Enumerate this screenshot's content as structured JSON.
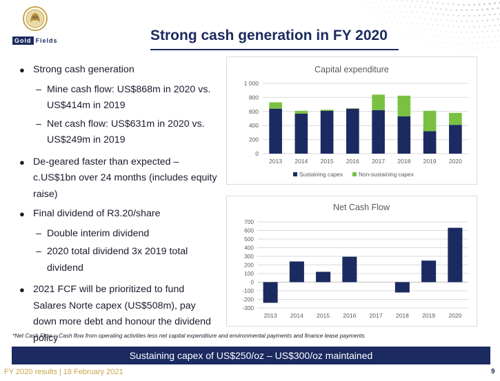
{
  "logo": {
    "word1": "Gold",
    "word2": "Fields"
  },
  "title": "Strong cash generation in FY 2020",
  "bullets": {
    "b1": "Strong cash generation",
    "b1_s1": "Mine cash flow: US$868m in 2020 vs. US$414m in 2019",
    "b1_s2": "Net cash flow: US$631m in 2020 vs. US$249m in 2019",
    "b2": "De-geared faster than expected – c.US$1bn over 24 months (includes equity raise)",
    "b3": "Final dividend of R3.20/share",
    "b3_s1": "Double interim dividend",
    "b3_s2": "2020 total dividend 3x 2019 total dividend",
    "b4": "2021 FCF will be prioritized to fund Salares Norte capex (US$508m), pay down more debt and honour the dividend policy"
  },
  "footnote": "*Net Cash Flow = Cash flow from operating activities less net capital expenditure and environmental payments and finance lease payments",
  "banner": "Sustaining capex of US$250/oz – US$300/oz maintained",
  "footer": "FY 2020 results | 18 February 2021",
  "page_number": "9",
  "colors": {
    "navy": "#1b2a60",
    "green": "#7ac143",
    "gold": "#c8a44a"
  },
  "chart_data": [
    {
      "type": "bar",
      "stacked": true,
      "title": "Capital expenditure",
      "categories": [
        "2013",
        "2014",
        "2015",
        "2016",
        "2017",
        "2018",
        "2019",
        "2020"
      ],
      "series": [
        {
          "name": "Sustaining capex",
          "values": [
            640,
            570,
            610,
            640,
            620,
            530,
            320,
            410
          ],
          "color": "#1b2a60"
        },
        {
          "name": "Non-sustaining capex",
          "values": [
            90,
            40,
            15,
            5,
            220,
            295,
            290,
            170
          ],
          "color": "#7ac143"
        }
      ],
      "yticks": [
        "0",
        "200",
        "400",
        "600",
        "800",
        "1 000"
      ],
      "ylim": [
        0,
        1000
      ],
      "legend": "bottom",
      "grid": true
    },
    {
      "type": "bar",
      "title": "Net Cash Flow",
      "categories": [
        "2013",
        "2014",
        "2015",
        "2016",
        "2017",
        "2018",
        "2019",
        "2020"
      ],
      "values": [
        -240,
        240,
        120,
        295,
        0,
        -120,
        250,
        631
      ],
      "color": "#1b2a60",
      "yticks": [
        "-300",
        "-200",
        "-100",
        "0",
        "100",
        "200",
        "300",
        "400",
        "500",
        "600",
        "700"
      ],
      "ylim": [
        -300,
        700
      ],
      "grid": true
    }
  ]
}
